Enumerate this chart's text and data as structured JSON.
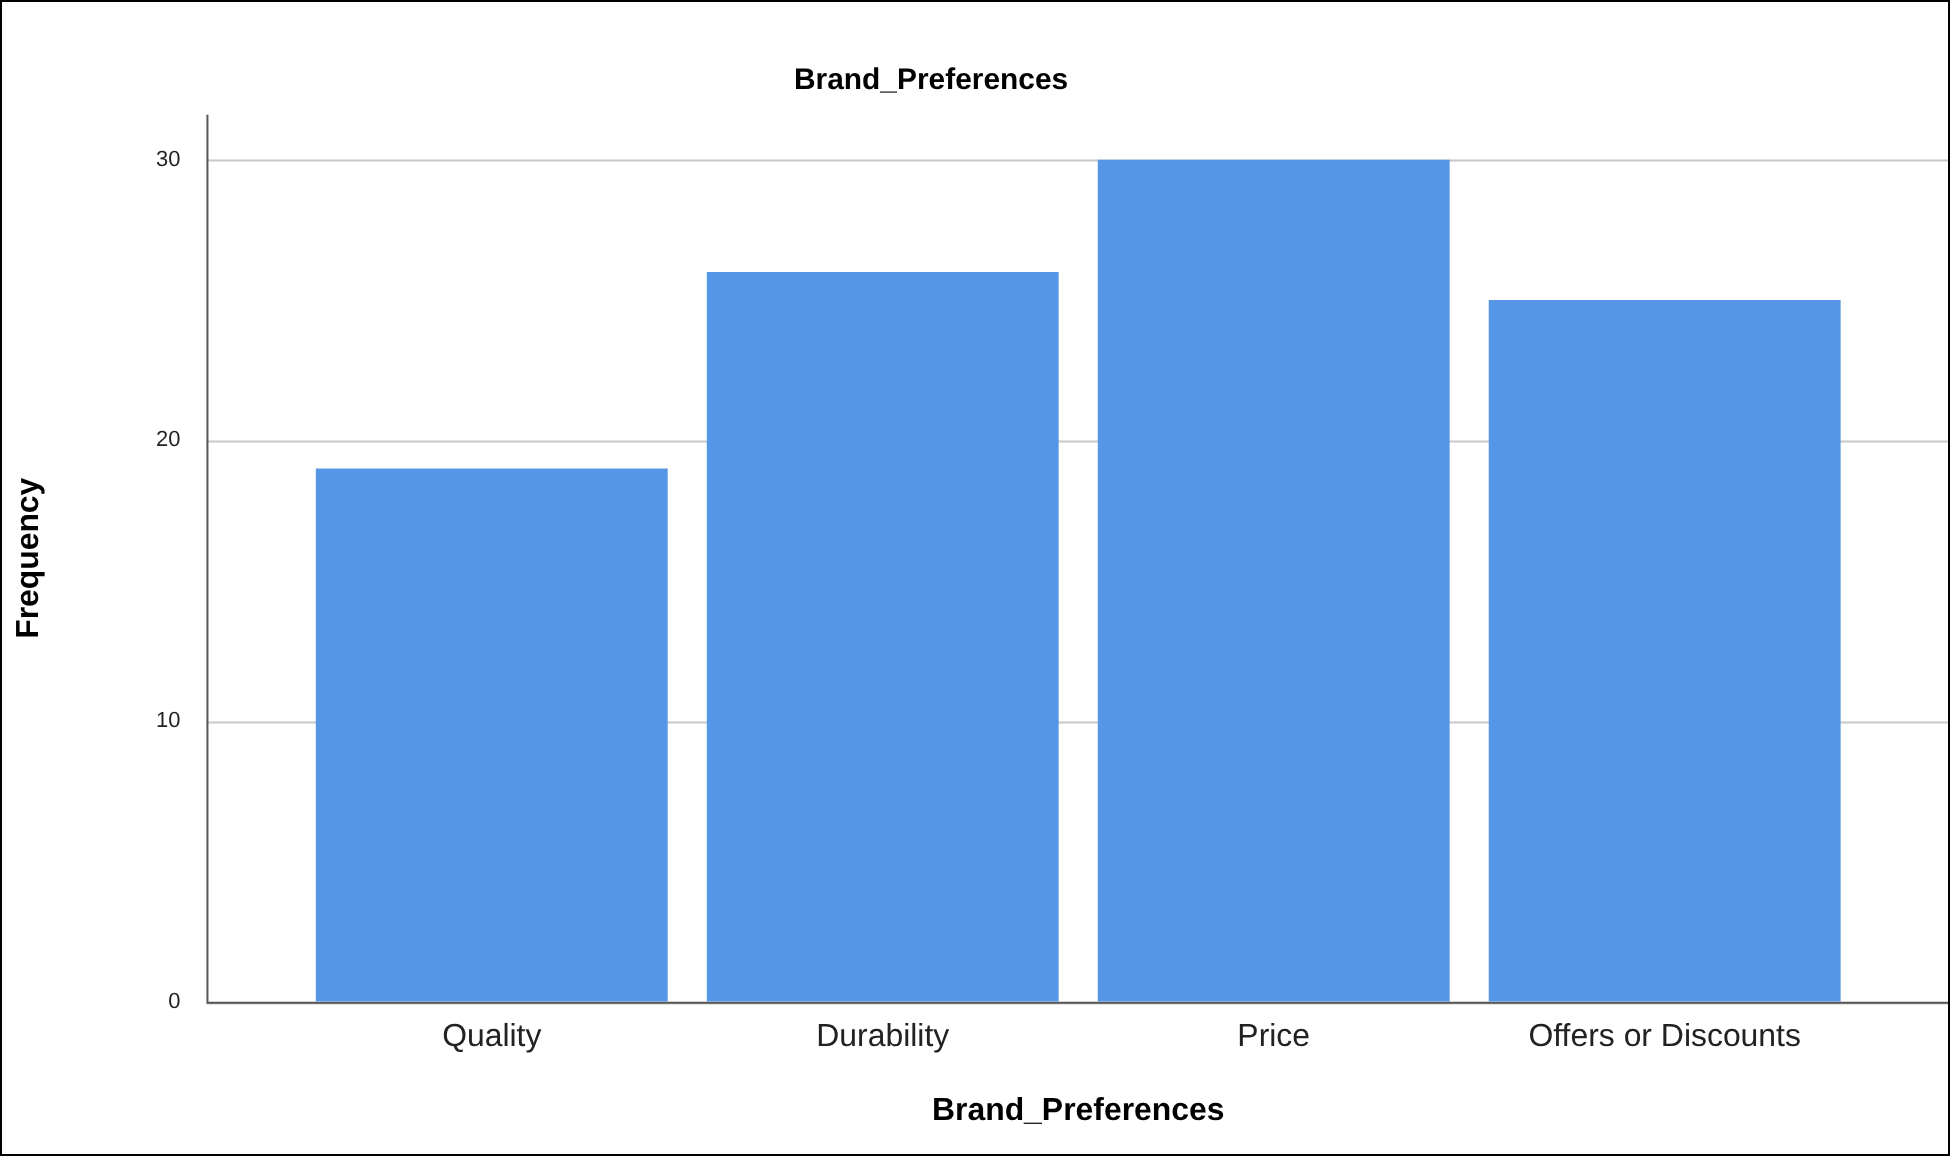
{
  "chart_data": {
    "type": "bar",
    "title": "Brand_Preferences",
    "xlabel": "Brand_Preferences",
    "ylabel": "Frequency",
    "categories": [
      "Quality",
      "Durability",
      "Price",
      "Offers or Discounts"
    ],
    "values": [
      19,
      26,
      30,
      25
    ],
    "color": "#5597e6",
    "ylim": [
      0,
      31.6
    ],
    "yticks": [
      0,
      10,
      20,
      30
    ],
    "grid": "y",
    "legend": false
  }
}
